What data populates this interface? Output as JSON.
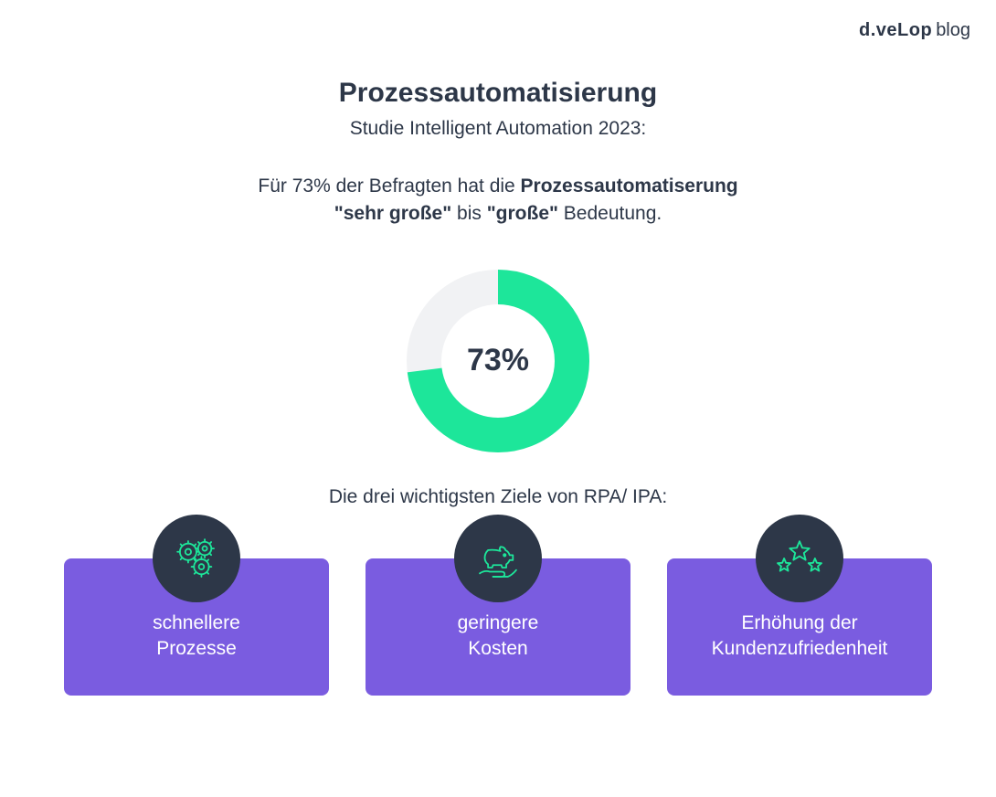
{
  "logo": {
    "bold": "d.veLop",
    "light": "blog",
    "color": "#2d3748"
  },
  "title": "Prozessautomatisierung",
  "subtitle": "Studie Intelligent Automation 2023:",
  "description": {
    "pre": "Für 73% der Befragten hat die ",
    "bold1": "Prozessautomatiserung",
    "br": true,
    "bold2": "\"sehr große\"",
    "mid": " bis ",
    "bold3": "\"große\"",
    "post": " Bedeutung."
  },
  "donut": {
    "percent": 73,
    "label": "73%",
    "ring_color": "#1de69a",
    "track_color": "#f1f2f4",
    "inner_radius": 62,
    "outer_radius": 100,
    "size": 230,
    "start_angle_deg": 0,
    "label_fontsize": 34,
    "label_color": "#2d3748"
  },
  "goals_title": "Die drei wichtigsten Ziele von RPA/ IPA:",
  "cards": {
    "bg_color": "#7a5ce0",
    "icon_bg": "#2d3748",
    "icon_stroke": "#1de69a",
    "text_color": "#ffffff",
    "items": [
      {
        "icon": "gears",
        "label_line1": "schnellere",
        "label_line2": "Prozesse"
      },
      {
        "icon": "savings",
        "label_line1": "geringere",
        "label_line2": "Kosten"
      },
      {
        "icon": "stars",
        "label_line1": "Erhöhung der",
        "label_line2": "Kundenzufriedenheit"
      }
    ]
  },
  "colors": {
    "background": "#ffffff",
    "text": "#2d3748",
    "accent_green": "#1de69a",
    "accent_purple": "#7a5ce0",
    "icon_circle": "#2d3748"
  },
  "typography": {
    "title_fontsize": 30,
    "title_weight": 700,
    "subtitle_fontsize": 21,
    "subtitle_weight": 400,
    "body_fontsize": 21,
    "card_fontsize": 21
  }
}
